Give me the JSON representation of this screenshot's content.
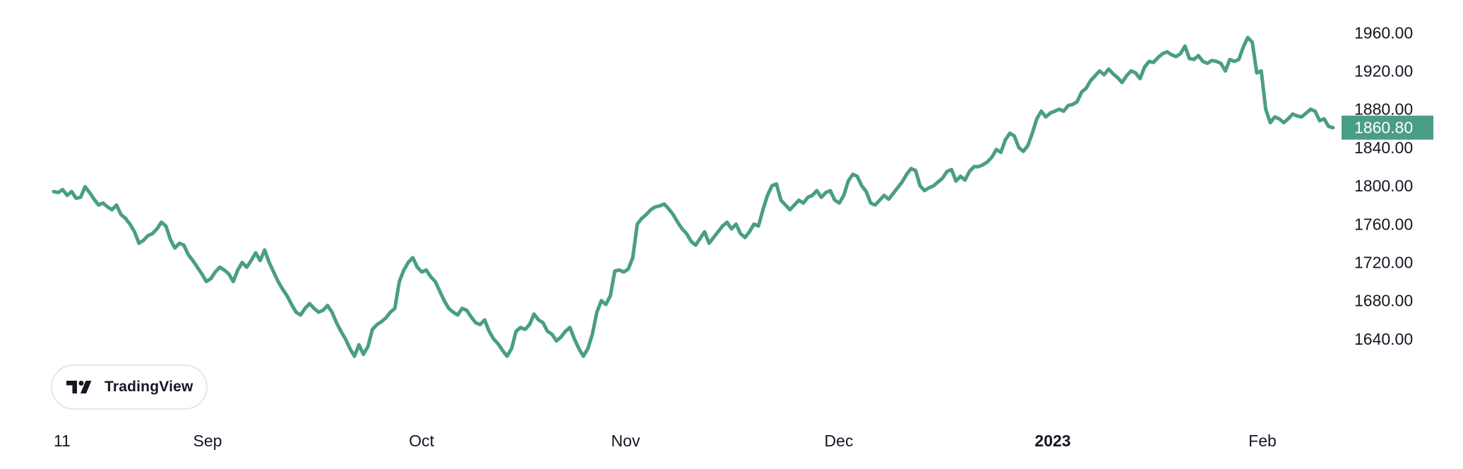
{
  "brand": {
    "name": "TradingView",
    "icon": "tradingview-logo-icon"
  },
  "chart_data": {
    "type": "line",
    "title": "",
    "xlabel": "",
    "ylabel": "",
    "series_color": "#4a9d86",
    "last_value": 1860.8,
    "last_value_label": "1860.80",
    "ylim": [
      1606,
      1972
    ],
    "y_ticks": [
      "1960.00",
      "1920.00",
      "1880.00",
      "1840.00",
      "1800.00",
      "1760.00",
      "1720.00",
      "1680.00",
      "1640.00"
    ],
    "x_ticks": [
      {
        "label": "11",
        "bold": false
      },
      {
        "label": "Sep",
        "bold": false
      },
      {
        "label": "Oct",
        "bold": false
      },
      {
        "label": "Nov",
        "bold": false
      },
      {
        "label": "Dec",
        "bold": false
      },
      {
        "label": "2023",
        "bold": true
      },
      {
        "label": "Feb",
        "bold": false
      }
    ],
    "grid": false,
    "legend": "none",
    "series": [
      {
        "values": [
          1794,
          1793,
          1796,
          1790,
          1794,
          1787,
          1788,
          1799,
          1793,
          1786,
          1780,
          1782,
          1778,
          1775,
          1780,
          1770,
          1766,
          1760,
          1752,
          1740,
          1743,
          1748,
          1750,
          1755,
          1762,
          1758,
          1744,
          1735,
          1740,
          1738,
          1728,
          1722,
          1715,
          1708,
          1700,
          1703,
          1710,
          1715,
          1712,
          1708,
          1700,
          1712,
          1720,
          1715,
          1722,
          1730,
          1722,
          1733,
          1720,
          1710,
          1700,
          1692,
          1685,
          1676,
          1668,
          1665,
          1672,
          1677,
          1672,
          1668,
          1670,
          1675,
          1668,
          1657,
          1648,
          1640,
          1630,
          1622,
          1634,
          1624,
          1632,
          1650,
          1655,
          1658,
          1662,
          1668,
          1672,
          1700,
          1712,
          1720,
          1725,
          1715,
          1710,
          1712,
          1705,
          1700,
          1690,
          1680,
          1672,
          1668,
          1665,
          1672,
          1670,
          1663,
          1657,
          1655,
          1660,
          1648,
          1640,
          1635,
          1628,
          1622,
          1630,
          1648,
          1652,
          1650,
          1655,
          1666,
          1660,
          1657,
          1648,
          1645,
          1638,
          1642,
          1648,
          1652,
          1640,
          1630,
          1622,
          1630,
          1645,
          1668,
          1680,
          1676,
          1685,
          1711,
          1712,
          1710,
          1713,
          1725,
          1760,
          1766,
          1770,
          1775,
          1778,
          1779,
          1781,
          1776,
          1770,
          1762,
          1755,
          1750,
          1742,
          1738,
          1745,
          1752,
          1740,
          1746,
          1752,
          1758,
          1762,
          1755,
          1760,
          1750,
          1746,
          1752,
          1760,
          1758,
          1775,
          1790,
          1800,
          1802,
          1785,
          1780,
          1775,
          1780,
          1785,
          1782,
          1788,
          1790,
          1795,
          1788,
          1793,
          1795,
          1785,
          1782,
          1790,
          1805,
          1812,
          1810,
          1800,
          1794,
          1782,
          1780,
          1785,
          1790,
          1786,
          1792,
          1798,
          1804,
          1812,
          1818,
          1816,
          1800,
          1795,
          1798,
          1800,
          1804,
          1808,
          1815,
          1817,
          1805,
          1810,
          1806,
          1815,
          1820,
          1820,
          1822,
          1825,
          1830,
          1838,
          1835,
          1848,
          1855,
          1852,
          1840,
          1836,
          1842,
          1855,
          1870,
          1878,
          1872,
          1876,
          1878,
          1880,
          1878,
          1884,
          1885,
          1888,
          1898,
          1902,
          1910,
          1915,
          1920,
          1916,
          1922,
          1917,
          1913,
          1908,
          1915,
          1920,
          1918,
          1912,
          1924,
          1930,
          1929,
          1934,
          1938,
          1940,
          1937,
          1935,
          1938,
          1946,
          1933,
          1932,
          1936,
          1930,
          1928,
          1931,
          1930,
          1928,
          1920,
          1932,
          1930,
          1932,
          1945,
          1955,
          1950,
          1918,
          1920,
          1880,
          1866,
          1872,
          1870,
          1866,
          1870,
          1875,
          1873,
          1872,
          1876,
          1880,
          1878,
          1868,
          1870,
          1862,
          1860.8
        ]
      }
    ]
  }
}
